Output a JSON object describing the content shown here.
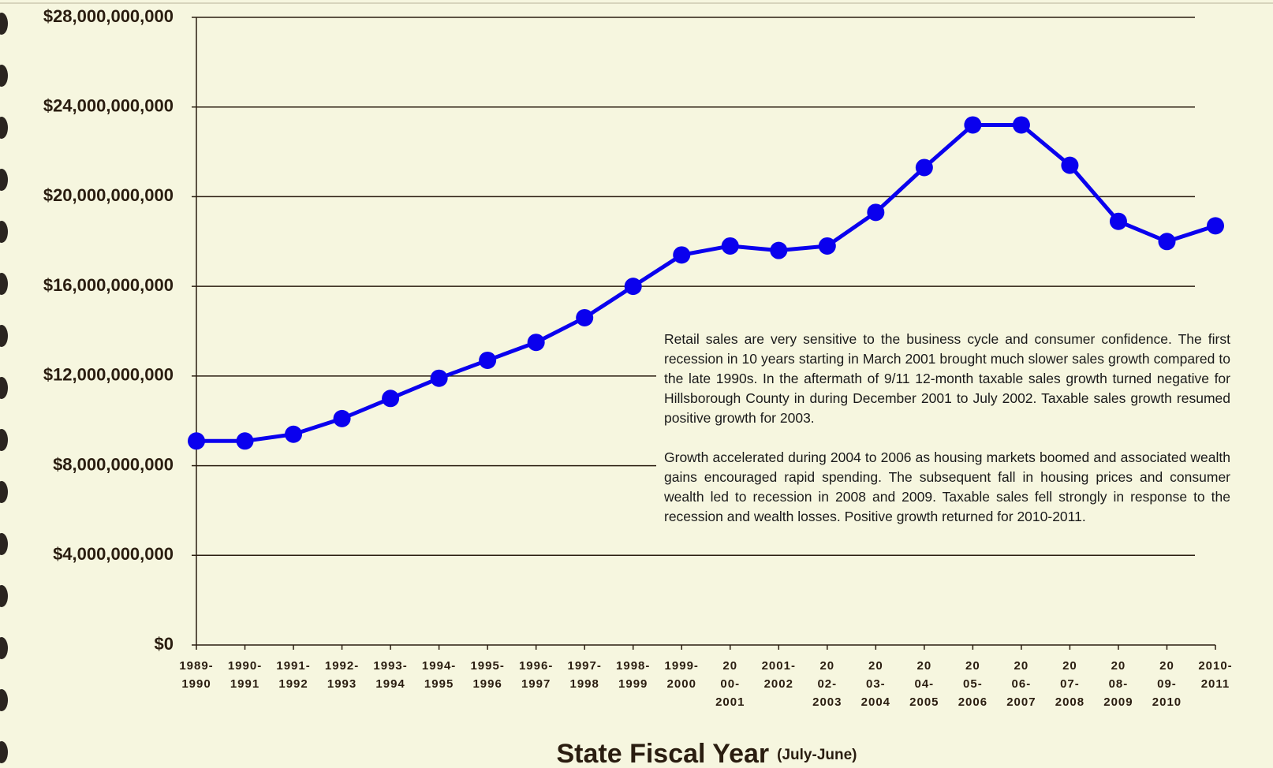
{
  "chart_data": {
    "type": "line",
    "x_label": "State Fiscal Year",
    "x_label_note": "(July-June)",
    "categories": [
      [
        "1989-",
        "1990"
      ],
      [
        "1990-",
        "1991"
      ],
      [
        "1991-",
        "1992"
      ],
      [
        "1992-",
        "1993"
      ],
      [
        "1993-",
        "1994"
      ],
      [
        "1994-",
        "1995"
      ],
      [
        "1995-",
        "1996"
      ],
      [
        "1996-",
        "1997"
      ],
      [
        "1997-",
        "1998"
      ],
      [
        "1998-",
        "1999"
      ],
      [
        "1999-",
        "2000"
      ],
      [
        "20",
        "00-",
        "2001"
      ],
      [
        "2001-",
        "2002"
      ],
      [
        "20",
        "02-",
        "2003"
      ],
      [
        "20",
        "03-",
        "2004"
      ],
      [
        "20",
        "04-",
        "2005"
      ],
      [
        "20",
        "05-",
        "2006"
      ],
      [
        "20",
        "06-",
        "2007"
      ],
      [
        "20",
        "07-",
        "2008"
      ],
      [
        "20",
        "08-",
        "2009"
      ],
      [
        "20",
        "09-",
        "2010"
      ],
      [
        "2010-",
        "2011"
      ]
    ],
    "series": [
      {
        "color": "#0a00ee",
        "values": [
          9100000000,
          9100000000,
          9400000000,
          10100000000,
          11000000000,
          11900000000,
          12700000000,
          13500000000,
          14600000000,
          16000000000,
          17400000000,
          17800000000,
          17600000000,
          17800000000,
          19300000000,
          21300000000,
          23200000000,
          23200000000,
          21400000000,
          18900000000,
          18000000000,
          18700000000
        ]
      }
    ],
    "ylim": [
      0,
      28000000000
    ],
    "yticks": [
      {
        "value": 0,
        "label": "$0"
      },
      {
        "value": 4000000000,
        "label": "$4,000,000,000"
      },
      {
        "value": 8000000000,
        "label": "$8,000,000,000"
      },
      {
        "value": 12000000000,
        "label": "$12,000,000,000"
      },
      {
        "value": 16000000000,
        "label": "$16,000,000,000"
      },
      {
        "value": 20000000000,
        "label": "$20,000,000,000"
      },
      {
        "value": 24000000000,
        "label": "$24,000,000,000"
      },
      {
        "value": 28000000000,
        "label": "$28,000,000,000"
      }
    ],
    "grid": true,
    "annotations": [
      "Retail sales are very sensitive to the business cycle and consumer confidence. The first recession in 10 years starting in March 2001 brought much slower sales growth compared to the late 1990s.  In the aftermath of 9/11 12-month taxable sales growth turned negative for Hillsborough County in during December 2001 to July 2002. Taxable sales growth resumed positive growth for 2003.",
      "Growth accelerated during 2004 to 2006 as housing markets boomed and associated wealth gains encouraged rapid spending.  The subsequent fall in housing prices and consumer wealth led to recession in 2008 and 2009. Taxable sales fell strongly in response to the recession and wealth losses. Positive growth returned for 2010-2011."
    ]
  }
}
